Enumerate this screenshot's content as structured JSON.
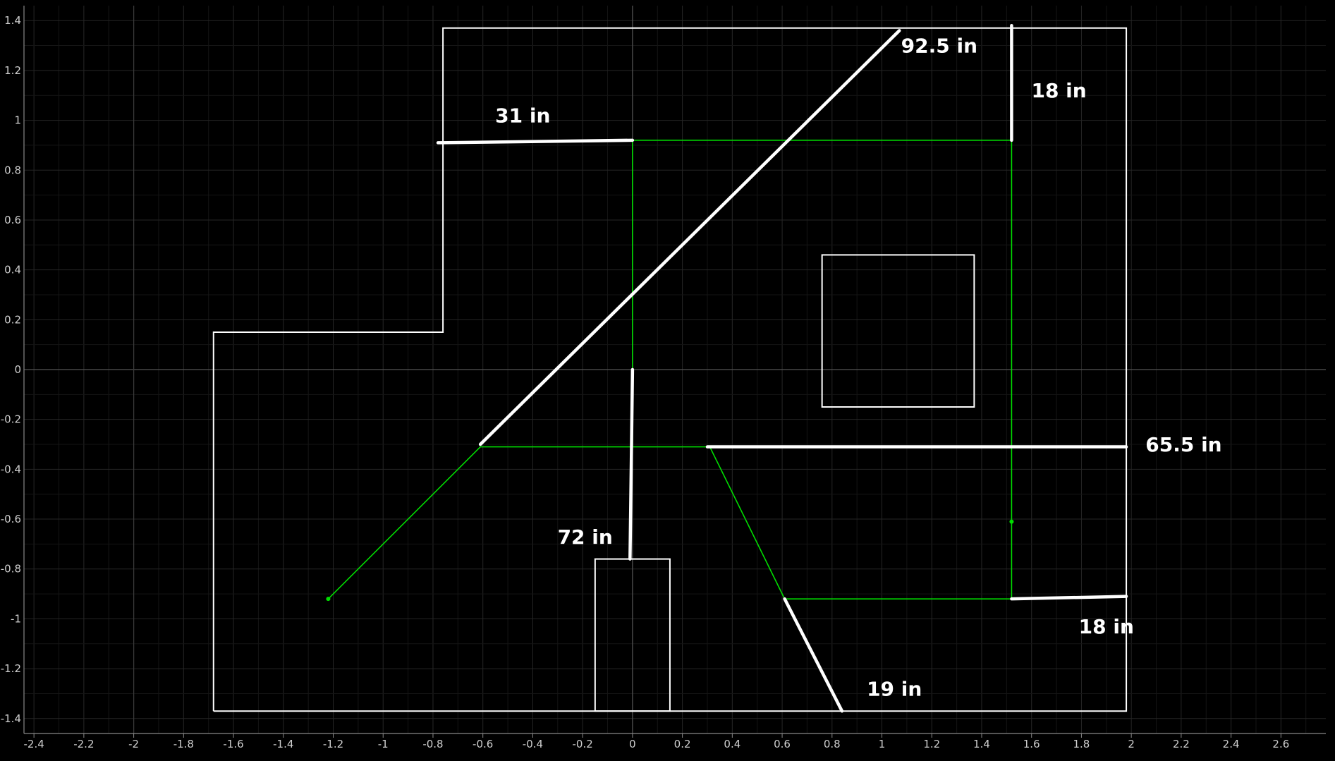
{
  "colors": {
    "background": "#000000",
    "grid": "#2a2a2a",
    "axis": "#555555",
    "outline": "#ffffff",
    "path": "#00dd00",
    "measure": "#ffffff"
  },
  "chart_data": {
    "type": "diagram",
    "xlim": [
      -2.44,
      2.78
    ],
    "ylim": [
      -1.46,
      1.46
    ],
    "x_ticks": [
      "-2.4",
      "-2.2",
      "-2",
      "-1.8",
      "-1.6",
      "-1.4",
      "-1.2",
      "-1",
      "-0.8",
      "-0.6",
      "-0.4",
      "-0.2",
      "0",
      "0.2",
      "0.4",
      "0.6",
      "0.8",
      "1",
      "1.2",
      "1.4",
      "1.6",
      "1.8",
      "2",
      "2.2",
      "2.4",
      "2.6"
    ],
    "y_ticks": [
      "1.4",
      "1.2",
      "1",
      "0.8",
      "0.6",
      "0.4",
      "0.2",
      "0",
      "-0.2",
      "-0.4",
      "-0.6",
      "-0.8",
      "-1",
      "-1.2",
      "-1.4"
    ],
    "grid": true,
    "room_outline": [
      [
        -1.68,
        -1.37
      ],
      [
        -1.68,
        0.15
      ],
      [
        -0.76,
        0.15
      ],
      [
        -0.76,
        1.37
      ],
      [
        1.98,
        1.37
      ],
      [
        1.98,
        -1.37
      ],
      [
        -1.68,
        -1.37
      ]
    ],
    "rectangles": [
      {
        "name": "box-upper-right",
        "x0": 0.76,
        "y0": -0.15,
        "x1": 1.37,
        "y1": 0.46
      },
      {
        "name": "box-bottom-door",
        "x0": -0.15,
        "y0": -1.37,
        "x1": 0.15,
        "y1": -0.76
      }
    ],
    "green_path": [
      [
        [
          -1.22,
          -0.92
        ],
        [
          -0.61,
          -0.31
        ],
        [
          0.31,
          -0.31
        ],
        [
          0.61,
          -0.92
        ],
        [
          1.52,
          -0.92
        ],
        [
          1.52,
          0.92
        ],
        [
          0.0,
          0.92
        ],
        [
          0.0,
          -0.31
        ]
      ]
    ],
    "green_points": [
      [
        -1.22,
        -0.92
      ],
      [
        1.52,
        -0.61
      ]
    ],
    "measure_lines": [
      {
        "from": [
          -0.78,
          0.91
        ],
        "to": [
          0.0,
          0.92
        ]
      },
      {
        "from": [
          -0.61,
          -0.3
        ],
        "to": [
          1.07,
          1.36
        ]
      },
      {
        "from": [
          1.52,
          0.92
        ],
        "to": [
          1.52,
          1.38
        ]
      },
      {
        "from": [
          0.3,
          -0.31
        ],
        "to": [
          1.98,
          -0.31
        ]
      },
      {
        "from": [
          0.0,
          0.0
        ],
        "to": [
          -0.01,
          -0.76
        ]
      },
      {
        "from": [
          1.52,
          -0.92
        ],
        "to": [
          1.98,
          -0.91
        ]
      },
      {
        "from": [
          0.61,
          -0.92
        ],
        "to": [
          0.84,
          -1.37
        ]
      }
    ],
    "annotations": [
      {
        "text": "31 in",
        "x": -0.44,
        "y": 1.02
      },
      {
        "text": "92.5 in",
        "x": 1.23,
        "y": 1.3
      },
      {
        "text": "18 in",
        "x": 1.71,
        "y": 1.12
      },
      {
        "text": "65.5 in",
        "x": 2.21,
        "y": -0.3
      },
      {
        "text": "72 in",
        "x": -0.19,
        "y": -0.67
      },
      {
        "text": "18 in",
        "x": 1.9,
        "y": -1.03
      },
      {
        "text": "19 in",
        "x": 1.05,
        "y": -1.28
      }
    ]
  }
}
